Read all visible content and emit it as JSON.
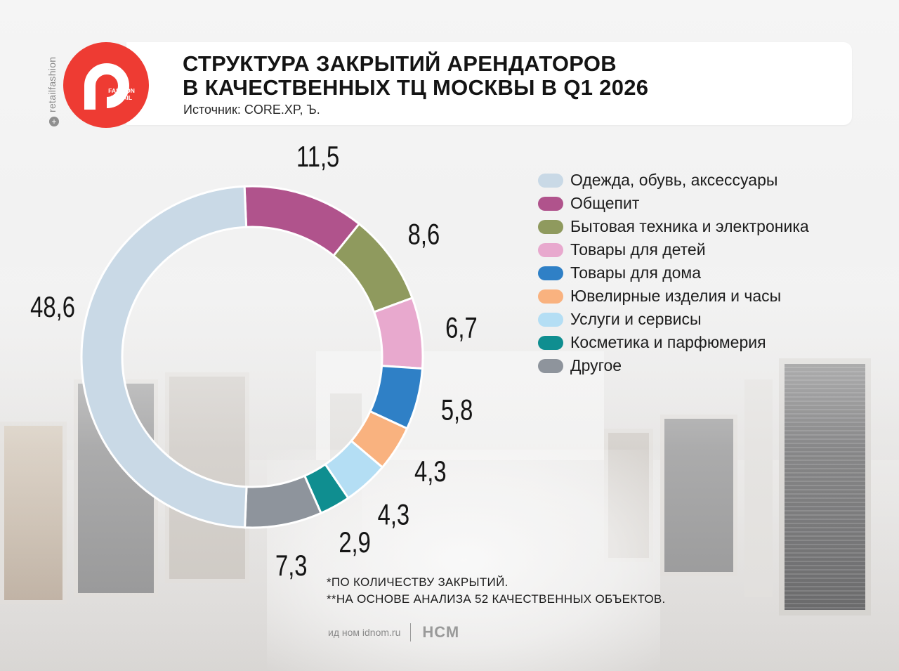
{
  "header": {
    "title_line1": "СТРУКТУРА ЗАКРЫТИЙ АРЕНДАТОРОВ",
    "title_line2": "В КАЧЕСТВЕННЫХ ТЦ МОСКВЫ В Q1 2026",
    "source": "Источник: CORE.XP, Ъ.",
    "side_handle": "retailfashion",
    "logo_text_line1": "FASHION",
    "logo_text_line2": "RETAIL"
  },
  "chart_data": {
    "type": "pie",
    "variant": "donut",
    "title": "СТРУКТУРА ЗАКРЫТИЙ АРЕНДАТОРОВ В КАЧЕСТВЕННЫХ ТЦ МОСКВЫ В Q1 2026",
    "categories": [
      "Одежда, обувь, аксессуары",
      "Общепит",
      "Бытовая техника и электроника",
      "Товары для детей",
      "Товары для дома",
      "Ювелирные изделия и часы",
      "Услуги и сервисы",
      "Косметика и парфюмерия",
      "Другое"
    ],
    "values": [
      48.6,
      11.5,
      8.6,
      6.7,
      5.8,
      4.3,
      4.3,
      2.9,
      7.3
    ],
    "value_labels": [
      "48,6",
      "11,5",
      "8,6",
      "6,7",
      "5,8",
      "4,3",
      "4,3",
      "2,9",
      "7,3"
    ],
    "colors": [
      "#c9d9e6",
      "#b0538c",
      "#8f9a5e",
      "#e8a9ce",
      "#2f80c6",
      "#f9b27f",
      "#b4def4",
      "#0f8e90",
      "#8e949c"
    ],
    "legend_position": "right",
    "draw_order": [
      1,
      2,
      3,
      4,
      5,
      6,
      7,
      8,
      0
    ]
  },
  "legend": {
    "items": [
      {
        "label": "Одежда, обувь, аксессуары",
        "color": "#c9d9e6"
      },
      {
        "label": "Общепит",
        "color": "#b0538c"
      },
      {
        "label": "Бытовая техника и электроника",
        "color": "#8f9a5e"
      },
      {
        "label": "Товары для детей",
        "color": "#e8a9ce"
      },
      {
        "label": "Товары для дома",
        "color": "#2f80c6"
      },
      {
        "label": "Ювелирные изделия и часы",
        "color": "#f9b27f"
      },
      {
        "label": "Услуги и сервисы",
        "color": "#b4def4"
      },
      {
        "label": "Косметика и парфюмерия",
        "color": "#0f8e90"
      },
      {
        "label": "Другое",
        "color": "#8e949c"
      }
    ]
  },
  "notes": {
    "note1": "*ПО КОЛИЧЕСТВУ ЗАКРЫТИЙ.",
    "note2": "**НА ОСНОВЕ АНАЛИЗА 52 КАЧЕСТВЕННЫХ ОБЪЕКТОВ."
  },
  "footer": {
    "site": "ид ном idnom.ru",
    "brand": "НСМ"
  }
}
